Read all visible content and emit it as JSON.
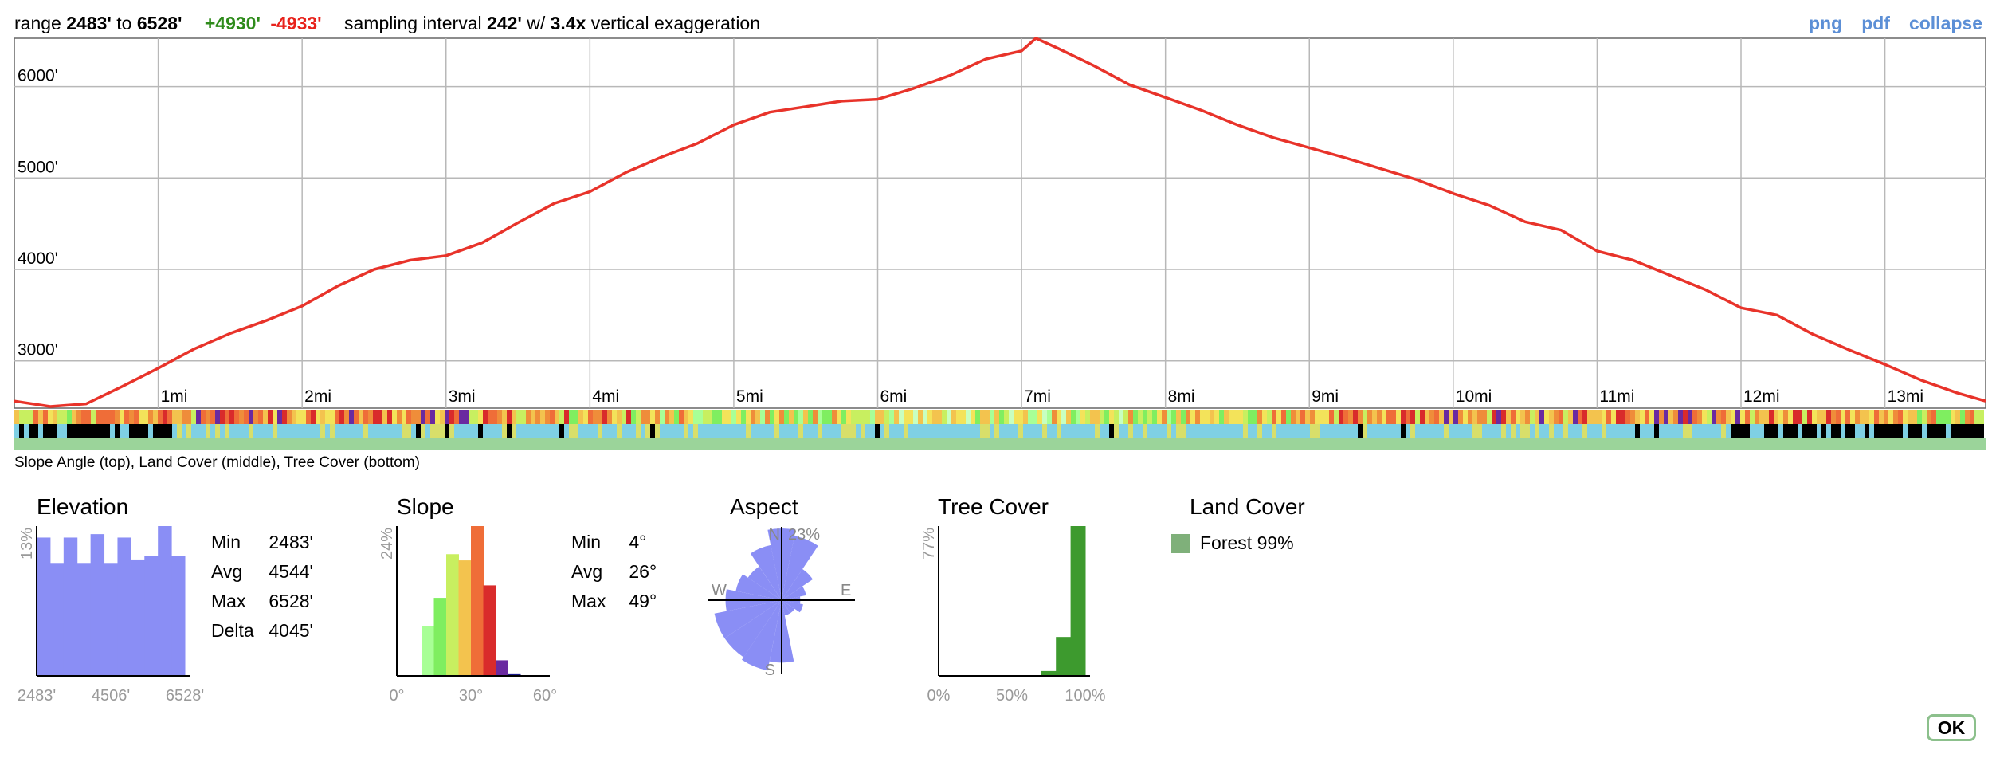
{
  "header": {
    "range_label": "range",
    "range_min": "2483'",
    "range_to": "to",
    "range_max": "6528'",
    "gain": "+4930'",
    "loss": "-4933'",
    "sampling_label": "sampling interval",
    "sampling_value": "242'",
    "exag_prefix": "w/",
    "exag_value": "3.4x",
    "exag_suffix": "vertical exaggeration"
  },
  "links": {
    "png": "png",
    "pdf": "pdf",
    "collapse": "collapse"
  },
  "strip_caption": "Slope Angle (top), Land Cover (middle), Tree Cover (bottom)",
  "colors": {
    "profile_line": "#e8332a",
    "histogram": "#8a8ef5",
    "grid": "#b8b8b8",
    "tree": "#3d9a2e",
    "forest": "#7fb07a",
    "land_blue": "#7fd0e4",
    "land_yellow": "#d8df6a",
    "land_black": "#000000"
  },
  "chart_data": [
    {
      "type": "line",
      "y_ticks": [
        "3000'",
        "4000'",
        "5000'",
        "6000'"
      ],
      "y_tick_values": [
        3000,
        4000,
        5000,
        6000
      ],
      "x_ticks": [
        "1mi",
        "2mi",
        "3mi",
        "4mi",
        "5mi",
        "6mi",
        "7mi",
        "8mi",
        "9mi",
        "10mi",
        "11mi",
        "12mi",
        "13mi"
      ],
      "x_tick_values": [
        1,
        2,
        3,
        4,
        5,
        6,
        7,
        8,
        9,
        10,
        11,
        12,
        13
      ],
      "xlim": [
        0,
        13.7
      ],
      "ylim": [
        2483,
        6528
      ],
      "x": [
        0,
        0.25,
        0.5,
        0.75,
        1,
        1.25,
        1.5,
        1.75,
        2,
        2.25,
        2.5,
        2.75,
        3,
        3.25,
        3.5,
        3.75,
        4,
        4.25,
        4.5,
        4.75,
        5,
        5.25,
        5.5,
        5.75,
        6,
        6.25,
        6.5,
        6.75,
        7,
        7.1,
        7.25,
        7.5,
        7.75,
        8,
        8.25,
        8.5,
        8.75,
        9,
        9.25,
        9.5,
        9.75,
        10,
        10.25,
        10.5,
        10.75,
        11,
        11.25,
        11.5,
        11.75,
        12,
        12.25,
        12.5,
        12.75,
        13,
        13.25,
        13.5,
        13.7
      ],
      "y": [
        2560,
        2500,
        2530,
        2720,
        2920,
        3130,
        3300,
        3440,
        3600,
        3820,
        4000,
        4100,
        4150,
        4290,
        4510,
        4720,
        4850,
        5060,
        5230,
        5380,
        5580,
        5720,
        5780,
        5840,
        5860,
        5980,
        6120,
        6300,
        6390,
        6528,
        6420,
        6230,
        6020,
        5880,
        5740,
        5580,
        5440,
        5330,
        5220,
        5100,
        4980,
        4830,
        4700,
        4520,
        4430,
        4200,
        4100,
        3940,
        3780,
        3580,
        3500,
        3290,
        3120,
        2960,
        2790,
        2650,
        2560
      ]
    },
    {
      "type": "bar",
      "title": "Elevation",
      "ylabel": "13%",
      "x_ticks": [
        "2483'",
        "4506'",
        "6528'"
      ],
      "values": [
        12,
        9.8,
        12,
        9.8,
        12.3,
        9.8,
        12,
        10.1,
        10.4,
        13,
        10.4
      ],
      "ylim": [
        0,
        13
      ],
      "stats": [
        {
          "key": "Min",
          "value": "2483'"
        },
        {
          "key": "Avg",
          "value": "4544'"
        },
        {
          "key": "Max",
          "value": "6528'"
        },
        {
          "key": "Delta",
          "value": "4045'"
        }
      ]
    },
    {
      "type": "bar",
      "title": "Slope",
      "ylabel": "24%",
      "x_ticks": [
        "0°",
        "30°",
        "60°"
      ],
      "categories": [
        0,
        5,
        10,
        15,
        20,
        25,
        30,
        35,
        40,
        45,
        50,
        55
      ],
      "values": [
        0,
        0,
        8,
        12.5,
        19.5,
        18.5,
        24,
        14.5,
        2.5,
        0.4,
        0,
        0
      ],
      "bar_colors": [
        "#c8ffc0",
        "#c8ffc0",
        "#a8ff96",
        "#7fee60",
        "#c8ef60",
        "#f3c34e",
        "#ef6d38",
        "#d92b2b",
        "#6a2aa0",
        "#1a1a8a",
        "#1a1a8a",
        "#1a1a8a"
      ],
      "ylim": [
        0,
        24
      ],
      "stats": [
        {
          "key": "Min",
          "value": "4°"
        },
        {
          "key": "Avg",
          "value": "26°"
        },
        {
          "key": "Max",
          "value": "49°"
        }
      ]
    },
    {
      "type": "pie",
      "title": "Aspect",
      "max_label": "23%",
      "directions": [
        "N",
        "E",
        "S",
        "W"
      ],
      "sector_labels": [
        "N",
        "NNE",
        "NE",
        "ENE",
        "E",
        "ESE",
        "SE",
        "SSE",
        "S",
        "SSW",
        "SW",
        "WSW",
        "W",
        "WNW",
        "NW",
        "NNW"
      ],
      "values": [
        23,
        21,
        12,
        8,
        6,
        7,
        5,
        5,
        20,
        23,
        22,
        22,
        18,
        15,
        13,
        18
      ],
      "max": 23
    },
    {
      "type": "bar",
      "title": "Tree Cover",
      "ylabel": "77%",
      "x_ticks": [
        "0%",
        "50%",
        "100%"
      ],
      "categories": [
        0,
        10,
        20,
        30,
        40,
        50,
        60,
        70,
        80,
        90
      ],
      "values": [
        0,
        0,
        0,
        0,
        0,
        0,
        0,
        2.5,
        20,
        77
      ],
      "ylim": [
        0,
        77
      ]
    }
  ],
  "land_cover": {
    "title": "Land Cover",
    "items": [
      {
        "label": "Forest 99%"
      }
    ]
  },
  "ok_button": "OK"
}
